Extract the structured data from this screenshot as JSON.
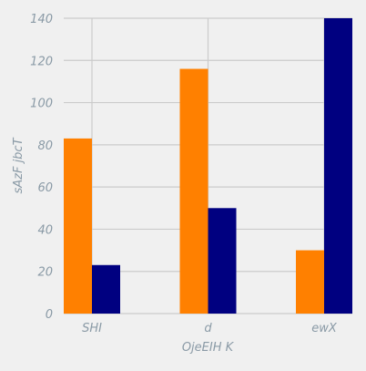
{
  "chart_data": {
    "type": "bar",
    "title": "",
    "xlabel": "OjeEIH K",
    "ylabel": "sAzF jbcT",
    "categories": [
      "SHI",
      "d",
      "ewX"
    ],
    "series": [
      {
        "values": [
          83,
          116,
          30
        ],
        "color": "#ff8000"
      },
      {
        "values": [
          23,
          50,
          140
        ],
        "color": "#000080"
      }
    ],
    "ylim": [
      0,
      140
    ],
    "yticks": [
      0,
      20,
      40,
      60,
      80,
      100,
      120,
      140
    ],
    "grid": true,
    "legend": "none"
  },
  "colors": {
    "background": "#f0f0f0",
    "grid": "#cbcbcb",
    "text": "#8a9aa6"
  }
}
